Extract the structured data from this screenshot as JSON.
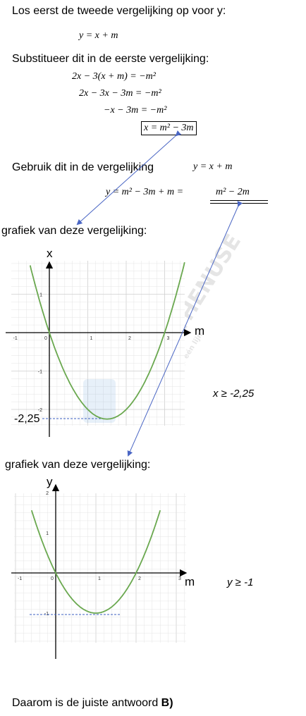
{
  "texts": {
    "intro": "Los eerst de tweede vergelijking op voor y:",
    "substitute": "Substitueer dit in de eerste vergelijking:",
    "use_in": "Gebruik dit in de vergelijking",
    "graph1_caption": "grafiek van deze vergelijking:",
    "graph2_caption": "grafiek van deze vergelijking:",
    "conclusion_prefix": "Daarom is de juiste antwoord ",
    "conclusion_answer": "B)"
  },
  "equations": {
    "eq_y": "y = x + m",
    "step1": "2x − 3(x + m) = −m²",
    "step2": "2x − 3x − 3m = −m²",
    "step3": "−x − 3m = −m²",
    "step4": "x = m² − 3m",
    "eq_y2": "y = x + m",
    "final_a": "y = m² − 3m + m = ",
    "final_b": "m² − 2m"
  },
  "graph1": {
    "x_axis_name": "m",
    "y_axis_name": "x",
    "min_label": "-2,25",
    "condition": "x ≥ -2,25",
    "x_ticks": [
      "-1",
      "0",
      "1",
      "2",
      "3"
    ],
    "y_ticks": [
      "1",
      "-1",
      "-2"
    ],
    "watermark_big": "HYPOTHENUSE",
    "watermark_small": "leren op één lijn"
  },
  "graph2": {
    "x_axis_name": "m",
    "y_axis_name": "y",
    "condition": "y ≥ -1",
    "x_ticks": [
      "-1",
      "0",
      "1",
      "2",
      "3"
    ],
    "y_ticks": [
      "2",
      "1",
      "-1"
    ]
  },
  "colors": {
    "curve": "#6aa84f",
    "arrow": "#4a66c4",
    "grid": "#e4e4e4",
    "dashed": "#3b5fc0"
  }
}
